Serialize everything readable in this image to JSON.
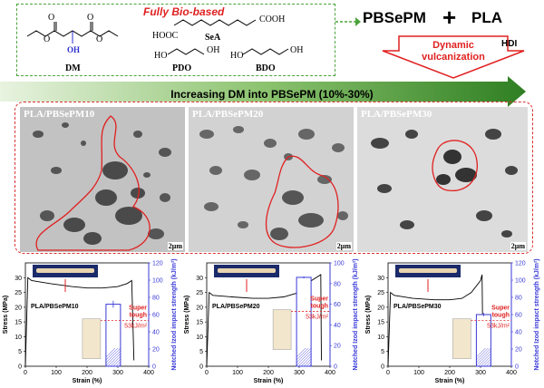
{
  "scheme": {
    "title": "Fully  Bio-based",
    "molecules": [
      {
        "name": "DM",
        "group": "OH"
      },
      {
        "name": "SeA",
        "formula_left": "HOOC",
        "formula_right": "COOH"
      },
      {
        "name": "PDO",
        "formula_left": "HO",
        "formula_right": "OH"
      },
      {
        "name": "BDO",
        "formula_left": "HO",
        "formula_right": "OH"
      }
    ]
  },
  "reaction": {
    "polymer1": "PBSePM",
    "plus": "+",
    "polymer2": "PLA",
    "curing_agent": "HDI",
    "process": [
      "Dynamic",
      "vulcanization"
    ]
  },
  "banner": {
    "text": "Increasing DM into PBSePM (10%-30%)"
  },
  "tem": [
    {
      "label": "PLA/PBSePM10",
      "scale": "2μm"
    },
    {
      "label": "PLA/PBSePM20",
      "scale": "2μm"
    },
    {
      "label": "PLA/PBSePM30",
      "scale": "2μm"
    }
  ],
  "colors": {
    "accent_red": "#e02020",
    "bar_blue": "#3a3ad8",
    "green_dash": "#4aa33a",
    "arrow_green": "#3f8f2e"
  },
  "chart_data": [
    {
      "type": "line",
      "title": "PLA/PBSePM10",
      "xlabel": "Strain (%)",
      "ylabel": "Stress (MPa)",
      "y2label": "Notched Izod impact strength (kJ/m²)",
      "xlim": [
        0,
        400
      ],
      "ylim": [
        0,
        35
      ],
      "y2lim": [
        0,
        120
      ],
      "xticks": [
        0,
        100,
        200,
        300,
        400
      ],
      "yticks": [
        0,
        5,
        10,
        15,
        20,
        25,
        30
      ],
      "y2ticks": [
        0,
        20,
        40,
        60,
        80,
        100,
        120
      ],
      "curve": [
        [
          0,
          0
        ],
        [
          8,
          30
        ],
        [
          20,
          29
        ],
        [
          80,
          28
        ],
        [
          150,
          27
        ],
        [
          200,
          26.5
        ],
        [
          250,
          26.5
        ],
        [
          300,
          27
        ],
        [
          330,
          28
        ],
        [
          345,
          29
        ],
        [
          352,
          2
        ]
      ],
      "bar": {
        "x": 285,
        "value": 72,
        "error": 4
      },
      "annotation": {
        "text1": "Super",
        "text2": "tough",
        "value_label": "53kJ/m²",
        "threshold": 53
      }
    },
    {
      "type": "line",
      "title": "PLA/PBSePM20",
      "xlabel": "Strain (%)",
      "ylabel": "Stress (MPa)",
      "y2label": "Notched Izod impact strength (kJ/m²)",
      "xlim": [
        0,
        400
      ],
      "ylim": [
        0,
        35
      ],
      "y2lim": [
        0,
        100
      ],
      "xticks": [
        0,
        100,
        200,
        300,
        400
      ],
      "yticks": [
        0,
        5,
        10,
        15,
        20,
        25,
        30
      ],
      "y2ticks": [
        0,
        20,
        40,
        60,
        80,
        100
      ],
      "curve": [
        [
          0,
          0
        ],
        [
          8,
          25
        ],
        [
          20,
          24
        ],
        [
          80,
          23.5
        ],
        [
          150,
          23
        ],
        [
          200,
          23
        ],
        [
          250,
          23.5
        ],
        [
          300,
          25
        ],
        [
          340,
          29
        ],
        [
          370,
          31
        ],
        [
          372,
          2
        ]
      ],
      "bar": {
        "x": 315,
        "value": 86,
        "error": 1
      },
      "annotation": {
        "text1": "Super",
        "text2": "tough",
        "value_label": "53kJ/m²",
        "threshold": 53
      }
    },
    {
      "type": "line",
      "title": "PLA/PBSePM30",
      "xlabel": "Strain (%)",
      "ylabel": "Stress (MPa)",
      "y2label": "Notched Izod impact strength (kJ/m²)",
      "xlim": [
        0,
        400
      ],
      "ylim": [
        0,
        35
      ],
      "y2lim": [
        0,
        120
      ],
      "xticks": [
        0,
        100,
        200,
        300,
        400
      ],
      "yticks": [
        0,
        5,
        10,
        15,
        20,
        25,
        30
      ],
      "y2ticks": [
        0,
        20,
        40,
        60,
        80,
        100,
        120
      ],
      "curve": [
        [
          0,
          0
        ],
        [
          8,
          25
        ],
        [
          20,
          24
        ],
        [
          80,
          23
        ],
        [
          150,
          22.5
        ],
        [
          200,
          22.5
        ],
        [
          240,
          23
        ],
        [
          270,
          25
        ],
        [
          300,
          29
        ],
        [
          305,
          31
        ],
        [
          308,
          2
        ]
      ],
      "bar": {
        "x": 310,
        "value": 60,
        "error": 2
      },
      "annotation": {
        "text1": "Super",
        "text2": "tough",
        "value_label": "53kJ/m²",
        "threshold": 53
      }
    }
  ]
}
